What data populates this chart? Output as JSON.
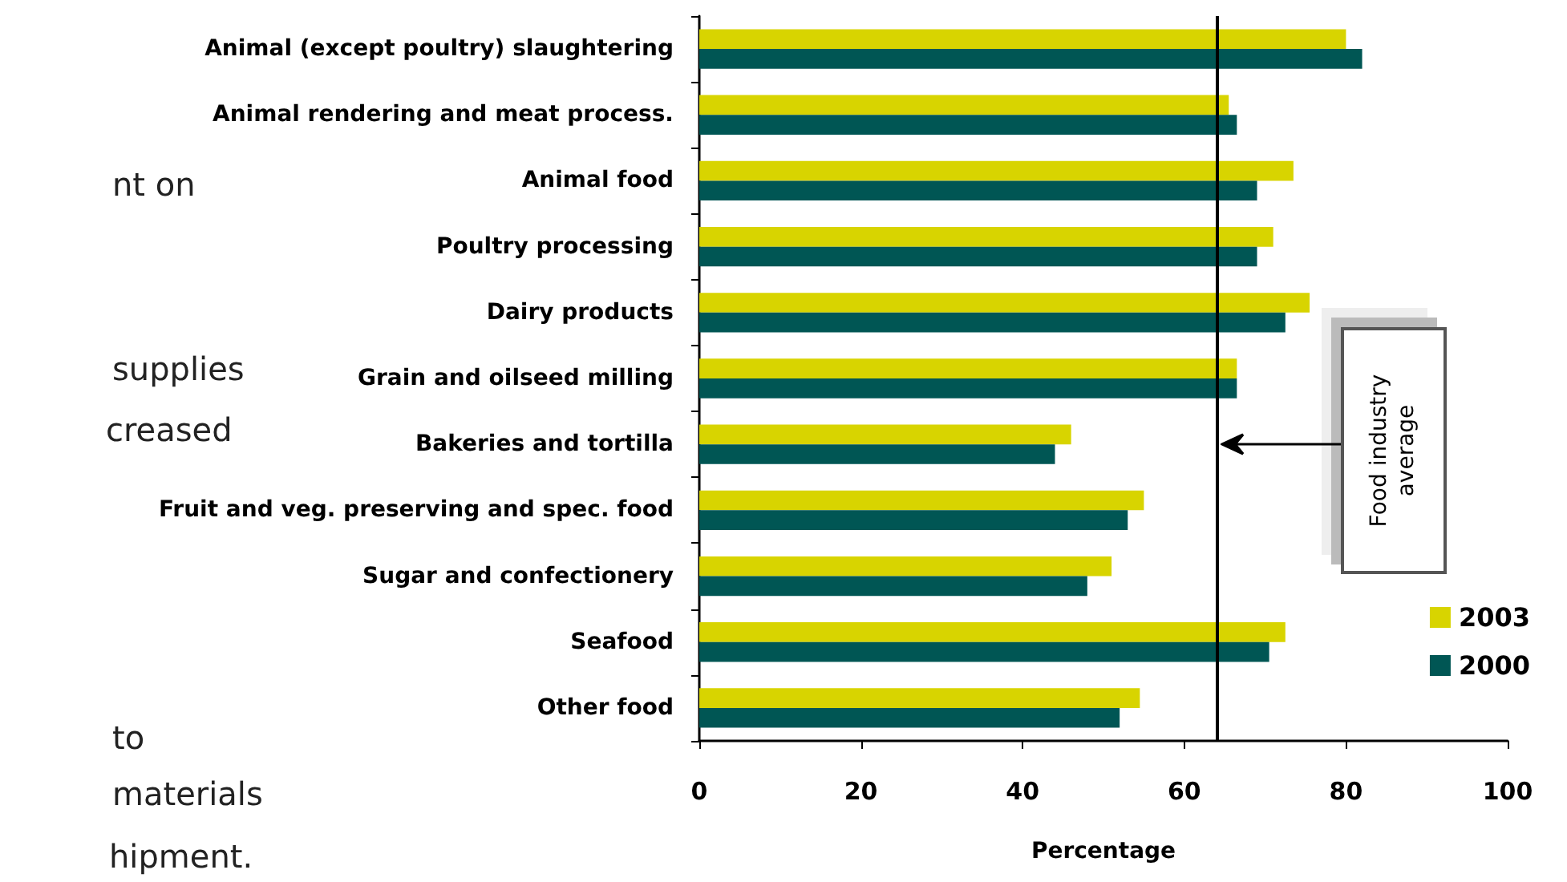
{
  "chart_data": {
    "type": "bar",
    "orientation": "horizontal",
    "xlabel": "Percentage",
    "categories": [
      "Animal (except poultry) slaughtering",
      "Animal rendering and meat process.",
      "Animal food",
      "Poultry processing",
      "Dairy products",
      "Grain and oilseed milling",
      "Bakeries and tortilla",
      "Fruit and veg. preserving and spec. food",
      "Sugar and confectionery",
      "Seafood",
      "Other food"
    ],
    "series": [
      {
        "name": "2003",
        "color": "#d8d400",
        "values": [
          80,
          65.5,
          73.5,
          71,
          75.5,
          66.5,
          46,
          55,
          51,
          72.5,
          54.5
        ]
      },
      {
        "name": "2000",
        "color": "#005654",
        "values": [
          82,
          66.5,
          69,
          69,
          72.5,
          66.5,
          44,
          53,
          48,
          70.5,
          52
        ]
      }
    ],
    "xlim": [
      0,
      100
    ],
    "xticks": [
      0,
      20,
      40,
      60,
      80,
      100
    ],
    "ref_lines": [
      {
        "axis": "x",
        "value": 64,
        "label": "Food industry average"
      }
    ],
    "annotations": [
      "nt on",
      "supplies",
      "creased",
      "to",
      "materials",
      "hipment."
    ],
    "grid": false,
    "legend": "bottom right"
  }
}
